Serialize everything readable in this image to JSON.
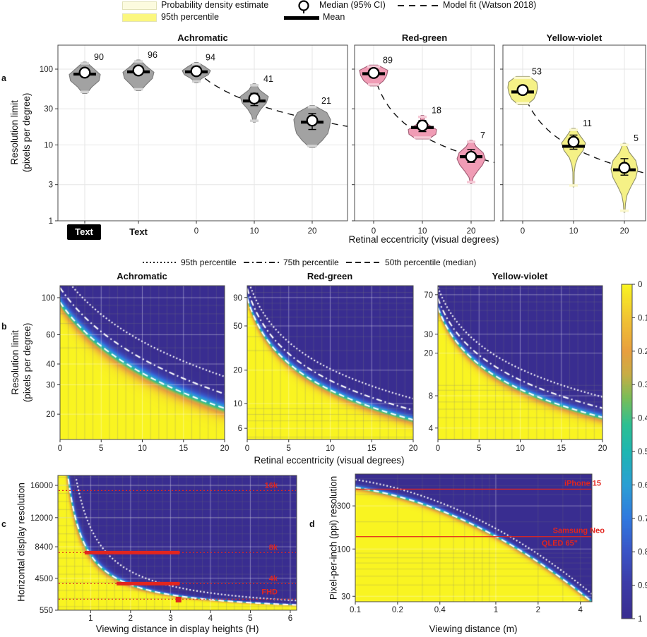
{
  "figure": {
    "legend": {
      "pde_label": "Probability density estimate",
      "p95_label": "95th percentile",
      "median_label": "Median (95% CI)",
      "mean_label": "Mean",
      "fit_label": "Model fit (Watson 2018)"
    },
    "letters": {
      "a": "a",
      "b": "b",
      "c": "c",
      "d": "d"
    },
    "accent_red": "#e2251e",
    "curve_white": "#ffffff"
  },
  "chart_data": {
    "panel_a": {
      "type": "violin",
      "ylabel": [
        "Resolution limit",
        "(pixels per degree)"
      ],
      "xlabel": "Retinal eccentricity (visual degrees)",
      "yticks": [
        100,
        30,
        10,
        3,
        1
      ],
      "special_xticks": [
        "Text",
        "Text"
      ],
      "subpanels": [
        {
          "title": "Achromatic",
          "color_body": "#a2a2a2",
          "color_cap": "#d2d2d2",
          "color_edge": "#7a7a7a",
          "xticks": [
            "0",
            "10",
            "20"
          ],
          "fit": {
            "m0": 94,
            "e2": 6.0
          },
          "violins": [
            {
              "label": "90",
              "median": 90,
              "mean": 86,
              "ci": [
                80,
                102
              ],
              "range": [
                48,
                124
              ],
              "halfwidth": 22,
              "profile": [
                0.1,
                0.55,
                1.0,
                0.92,
                0.45,
                0.14
              ]
            },
            {
              "label": "96",
              "median": 96,
              "mean": 92,
              "ci": [
                86,
                108
              ],
              "range": [
                52,
                132
              ],
              "halfwidth": 22,
              "profile": [
                0.1,
                0.5,
                1.0,
                0.9,
                0.5,
                0.15
              ]
            },
            {
              "label": "94",
              "median": 94,
              "mean": 92,
              "ci": [
                84,
                104
              ],
              "range": [
                66,
                122
              ],
              "halfwidth": 20,
              "profile": [
                0.12,
                0.6,
                1.0,
                0.85,
                0.35,
                0.12
              ]
            },
            {
              "label": "41",
              "median": 41,
              "mean": 38,
              "ci": [
                33,
                48
              ],
              "range": [
                20,
                64
              ],
              "halfwidth": 20,
              "profile": [
                0.1,
                0.4,
                1.0,
                0.85,
                0.45,
                0.18,
                0.08
              ]
            },
            {
              "label": "21",
              "median": 21,
              "mean": 20,
              "ci": [
                16,
                26
              ],
              "range": [
                9.3,
                33
              ],
              "halfwidth": 26,
              "profile": [
                0.12,
                0.8,
                1.0,
                0.95,
                0.85,
                0.55,
                0.15
              ]
            }
          ]
        },
        {
          "title": "Red-green",
          "color_body": "#f09cb5",
          "color_cap": "#f6c9d6",
          "color_edge": "#a05c74",
          "xticks": [
            "0",
            "10",
            "20"
          ],
          "fit": {
            "m0": 89,
            "e2": 1.75
          },
          "violins": [
            {
              "label": "89",
              "median": 89,
              "mean": 87,
              "ci": [
                81,
                98
              ],
              "range": [
                60,
                113
              ],
              "halfwidth": 20,
              "profile": [
                0.3,
                1.0,
                0.92,
                0.7,
                0.25
              ]
            },
            {
              "label": "18",
              "median": 18,
              "mean": 17,
              "ci": [
                15,
                21
              ],
              "range": [
                12,
                24.5
              ],
              "halfwidth": 20,
              "profile": [
                0.1,
                0.14,
                0.45,
                1.0,
                0.95,
                0.45
              ]
            },
            {
              "label": "7",
              "median": 7,
              "mean": 7,
              "ci": [
                5.9,
                8.7
              ],
              "range": [
                3.1,
                11.5
              ],
              "halfwidth": 20,
              "profile": [
                0.1,
                0.35,
                0.85,
                1.0,
                0.8,
                0.45,
                0.15,
                0.05
              ]
            }
          ]
        },
        {
          "title": "Yellow-violet",
          "color_body": "#f5f186",
          "color_cap": "#fbf8cd",
          "color_edge": "#90906a",
          "xticks": [
            "0",
            "10",
            "20"
          ],
          "fit": {
            "m0": 53,
            "e2": 2.1
          },
          "violins": [
            {
              "label": "53",
              "median": 53,
              "mean": 50,
              "ci": [
                46,
                60
              ],
              "range": [
                34,
                80
              ],
              "halfwidth": 21,
              "profile": [
                0.45,
                0.95,
                1.0,
                0.92,
                0.75,
                0.3
              ]
            },
            {
              "label": "11",
              "median": 11,
              "mean": 9.6,
              "ci": [
                8.8,
                13.5
              ],
              "range": [
                2.8,
                16.5
              ],
              "halfwidth": 17,
              "profile": [
                0.15,
                0.55,
                1.0,
                0.8,
                0.35,
                0.14,
                0.06,
                0.05,
                0.04
              ]
            },
            {
              "label": "5",
              "median": 5,
              "mean": 4.7,
              "ci": [
                4.0,
                6.6
              ],
              "range": [
                1.3,
                10.5
              ],
              "halfwidth": 19,
              "profile": [
                0.1,
                0.35,
                0.85,
                1.0,
                0.85,
                0.5,
                0.2,
                0.08,
                0.04
              ]
            }
          ]
        }
      ]
    },
    "panel_b": {
      "type": "heatmap",
      "curve_legend": [
        {
          "style": "dotted",
          "label": "95th percentile"
        },
        {
          "style": "dashdot",
          "label": "75th percentile"
        },
        {
          "style": "dashed",
          "label": "50th percentile (median)"
        }
      ],
      "ylabel": [
        "Resolution limit",
        "(pixels per degree)"
      ],
      "xlabel": "Retinal eccentricity (visual degrees)",
      "xticks": [
        0,
        5,
        10,
        15,
        20
      ],
      "sigma": 0.1,
      "percentile_ratios": {
        "p75": 1.22,
        "p95": 1.55
      },
      "subpanels": [
        {
          "title": "Achromatic",
          "yticks": [
            100,
            60,
            40,
            30,
            20
          ],
          "v_top": 118,
          "v_bottom": 14.1,
          "median_fit": {
            "m0": 94,
            "e2": 6.0
          }
        },
        {
          "title": "Red-green",
          "yticks": [
            90,
            50,
            20,
            10,
            6
          ],
          "v_top": 115,
          "v_bottom": 4.76,
          "median_fit": {
            "m0": 89,
            "e2": 1.75
          }
        },
        {
          "title": "Yellow-violet",
          "yticks": [
            70,
            30,
            20,
            8,
            4
          ],
          "v_top": 85,
          "v_bottom": 3.13,
          "median_fit": {
            "m0": 53,
            "e2": 2.1
          }
        }
      ]
    },
    "colorbar": {
      "ticks": [
        "0",
        "0.1",
        "0.2",
        "0.3",
        "0.4",
        "0.5",
        "0.6",
        "0.7",
        "0.8",
        "0.9",
        "1"
      ],
      "colormap": [
        [
          0,
          "#f9f421"
        ],
        [
          0.1,
          "#f1c433"
        ],
        [
          0.2,
          "#e89f3e"
        ],
        [
          0.27,
          "#c7ad45"
        ],
        [
          0.34,
          "#79bd58"
        ],
        [
          0.42,
          "#2dbf92"
        ],
        [
          0.5,
          "#1eb6b2"
        ],
        [
          0.6,
          "#2b9fd4"
        ],
        [
          0.7,
          "#3079df"
        ],
        [
          0.8,
          "#3a54c6"
        ],
        [
          0.9,
          "#3c3ba6"
        ],
        [
          1,
          "#392d90"
        ]
      ]
    },
    "panel_c": {
      "type": "heatmap",
      "ylabel": "Horizontal display resolution",
      "xlabel": "Viewing distance in display heights (H)",
      "yticks": [
        550,
        4500,
        8400,
        12000,
        16000
      ],
      "xticks": [
        1,
        2,
        3,
        4,
        5,
        6
      ],
      "x_range": [
        0.18,
        6.16
      ],
      "y_range": [
        550,
        17224
      ],
      "sigma": 0.09,
      "median_fit": {
        "K": 7400
      },
      "p95_ratio": 1.45,
      "annotations": {
        "lines": [
          {
            "label": "16k",
            "value": 15360
          },
          {
            "label": "8k",
            "value": 7680
          },
          {
            "label": "4k",
            "value": 3840
          },
          {
            "label": "FHD",
            "value": 1920
          }
        ],
        "bars": [
          {
            "value": 7680,
            "x1": 0.85,
            "x2": 3.23
          },
          {
            "value": 3840,
            "x1": 1.65,
            "x2": 3.23
          }
        ],
        "marker": {
          "x": 3.2,
          "value": 1860
        }
      }
    },
    "panel_d": {
      "type": "heatmap",
      "ylabel": "Pixel-per-inch (ppi) resolution",
      "xlabel": "Viewing distance (m)",
      "yticks": [
        300,
        100,
        30
      ],
      "xticks": [
        0.1,
        0.2,
        0.4,
        1,
        2,
        4
      ],
      "x_range": [
        0.1,
        4.83
      ],
      "y_range": [
        26.1,
        675
      ],
      "sigma": 0.07,
      "median_fit": {
        "a": 2.14,
        "b": -0.848,
        "c": -0.307
      },
      "p95_ratio": 1.22,
      "devices": [
        {
          "name": "iPhone 15",
          "ppi": 460
        },
        {
          "name": "Samsung Neo",
          "name2": "QLED 65\"",
          "ppi": 137
        }
      ]
    }
  }
}
